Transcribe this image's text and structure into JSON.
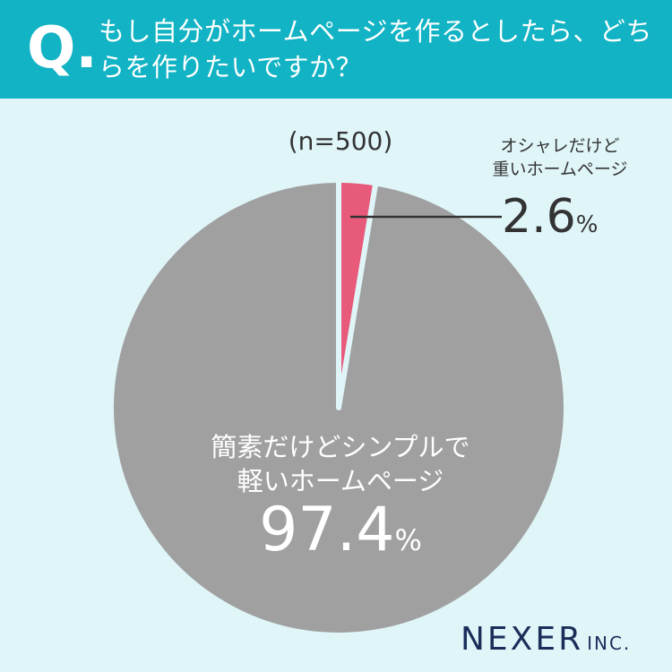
{
  "header": {
    "q_mark": "Q.",
    "question": "もし自分がホームページを作るとしたら、どちらを作りたいですか？"
  },
  "chart_data": {
    "type": "pie",
    "sample_label": "(n=500)",
    "slices": [
      {
        "label_line1": "オシャレだけど",
        "label_line2": "重いホームページ",
        "value": 2.6,
        "value_text": "2.6",
        "unit": "%",
        "color": "#e85a7a"
      },
      {
        "label_line1": "簡素だけどシンプルで",
        "label_line2": "軽いホームページ",
        "value": 97.4,
        "value_text": "97.4",
        "unit": "%",
        "color": "#a0a0a0"
      }
    ]
  },
  "brand": {
    "logo_main": "NEXER",
    "logo_suffix": "INC."
  }
}
